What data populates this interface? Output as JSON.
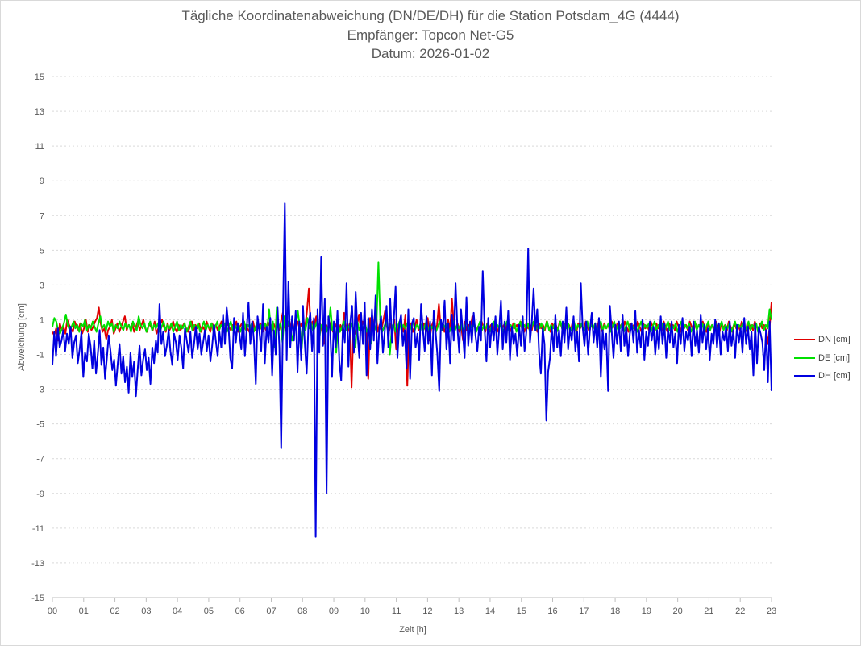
{
  "chart_data": {
    "type": "line",
    "title": "Tägliche Koordinatenabweichung (DN/DE/DH) für die Station Potsdam_4G (4444)",
    "subtitle": "Empfänger: Topcon Net-G5",
    "date_line": "Datum: 2026-01-02",
    "xlabel": "Zeit [h]",
    "ylabel": "Abweichung [cm]",
    "xlim": [
      0,
      23
    ],
    "ylim": [
      -15,
      15
    ],
    "x_ticks": [
      "00",
      "01",
      "02",
      "03",
      "04",
      "05",
      "06",
      "07",
      "08",
      "09",
      "10",
      "11",
      "12",
      "13",
      "14",
      "15",
      "16",
      "17",
      "18",
      "19",
      "20",
      "21",
      "22",
      "23"
    ],
    "y_ticks": [
      "15",
      "13",
      "11",
      "9",
      "7",
      "5",
      "3",
      "1",
      "-1",
      "-3",
      "-5",
      "-7",
      "-9",
      "-11",
      "-13",
      "-15"
    ],
    "y_tick_values": [
      15,
      13,
      11,
      9,
      7,
      5,
      3,
      1,
      -1,
      -3,
      -5,
      -7,
      -9,
      -11,
      -13,
      -15
    ],
    "grid": true,
    "legend_position": "right",
    "sample_interval_h": 0.0625,
    "series": [
      {
        "name": "DN [cm]",
        "color": "#e00000",
        "values": [
          0.3,
          0.1,
          0.5,
          -0.2,
          0.8,
          0.4,
          0.6,
          0.2,
          1.0,
          0.7,
          0.5,
          0.3,
          0.9,
          0.6,
          0.4,
          0.8,
          0.2,
          0.5,
          1.0,
          0.3,
          0.7,
          0.4,
          0.6,
          0.9,
          1.1,
          1.7,
          0.8,
          0.3,
          0.5,
          -0.1,
          0.4,
          0.6,
          1.0,
          0.2,
          0.5,
          0.8,
          0.3,
          0.6,
          0.9,
          1.2,
          0.4,
          0.7,
          0.5,
          0.8,
          0.3,
          0.6,
          0.9,
          0.4,
          0.7,
          1.0,
          0.5,
          0.3,
          0.8,
          0.6,
          0.4,
          0.9,
          0.2,
          0.5,
          0.7,
          1.0,
          0.6,
          0.3,
          0.8,
          0.4,
          0.6,
          0.9,
          0.5,
          0.3,
          0.7,
          0.4,
          0.6,
          0.8,
          0.5,
          0.3,
          0.6,
          0.9,
          0.4,
          0.7,
          0.5,
          0.8,
          0.3,
          0.6,
          0.4,
          0.9,
          0.6,
          0.3,
          0.8,
          0.5,
          0.7,
          0.4,
          0.6,
          0.9,
          0.3,
          0.5,
          0.8,
          0.6,
          0.4,
          0.7,
          0.5,
          0.9,
          0.3,
          0.6,
          0.8,
          0.4,
          0.7,
          0.5,
          0.3,
          0.6,
          0.9,
          0.4,
          0.7,
          0.5,
          0.8,
          0.3,
          0.6,
          0.4,
          0.9,
          0.6,
          0.3,
          0.8,
          0.5,
          0.7,
          0.4,
          0.9,
          1.4,
          0.6,
          0.3,
          0.8,
          0.5,
          1.0,
          0.4,
          0.7,
          0.9,
          0.5,
          0.8,
          0.3,
          0.6,
          1.5,
          2.8,
          0.4,
          0.9,
          0.6,
          1.2,
          0.3,
          0.8,
          0.5,
          -0.4,
          0.7,
          0.4,
          0.9,
          0.6,
          0.3,
          0.8,
          0.5,
          0.2,
          0.7,
          0.4,
          1.4,
          0.6,
          0.3,
          0.8,
          -2.9,
          0.5,
          0.2,
          0.7,
          1.3,
          0.4,
          0.9,
          0.6,
          0.3,
          -2.4,
          1.1,
          0.5,
          0.8,
          1.6,
          0.3,
          0.7,
          0.4,
          0.9,
          1.5,
          0.6,
          0.2,
          0.8,
          0.5,
          1.0,
          -0.7,
          0.4,
          0.9,
          0.6,
          0.3,
          1.3,
          -2.8,
          0.5,
          0.8,
          0.3,
          0.6,
          1.0,
          0.4,
          0.7,
          0.5,
          0.8,
          0.3,
          1.1,
          -0.2,
          0.6,
          0.9,
          0.4,
          0.7,
          1.9,
          0.5,
          0.8,
          0.3,
          0.6,
          1.0,
          0.4,
          2.2,
          0.7,
          0.5,
          0.8,
          0.3,
          0.6,
          -0.2,
          0.9,
          0.4,
          0.7,
          0.5,
          1.2,
          0.8,
          0.3,
          0.6,
          0.4,
          0.9,
          0.6,
          0.3,
          0.8,
          0.5,
          0.7,
          0.4,
          0.9,
          0.6,
          0.3,
          0.8,
          0.5,
          0.7,
          0.4,
          0.9,
          0.6,
          0.3,
          0.8,
          0.5,
          0.7,
          0.4,
          0.9,
          0.6,
          0.3,
          0.8,
          0.5,
          0.7,
          0.4,
          0.9,
          0.6,
          0.3,
          0.8,
          0.5,
          0.7,
          0.4,
          0.9,
          0.6,
          0.3,
          0.8,
          0.5,
          0.7,
          0.4,
          0.9,
          0.6,
          0.3,
          0.8,
          0.5,
          0.7,
          0.4,
          0.9,
          0.6,
          0.3,
          0.8,
          0.5,
          0.7,
          0.4,
          0.9,
          0.6,
          0.3,
          0.8,
          0.5,
          0.7,
          0.4,
          0.9,
          0.6,
          0.3,
          0.8,
          0.5,
          0.7,
          0.4,
          0.9,
          0.6,
          0.3,
          0.8,
          0.5,
          0.7,
          0.4,
          0.9,
          0.6,
          0.3,
          0.8,
          0.5,
          0.7,
          0.4,
          0.9,
          0.6,
          0.3,
          0.8,
          0.5,
          0.7,
          0.4,
          0.9,
          0.6,
          0.3,
          0.8,
          0.5,
          0.7,
          0.4,
          0.9,
          0.6,
          0.3,
          0.8,
          0.5,
          0.7,
          0.4,
          0.9,
          0.6,
          0.3,
          0.8,
          0.5,
          0.7,
          0.4,
          0.9,
          0.6,
          0.3,
          0.8,
          0.5,
          0.7,
          0.4,
          0.9,
          0.6,
          0.3,
          0.8,
          0.5,
          0.7,
          0.4,
          0.9,
          0.6,
          0.3,
          0.8,
          0.5,
          0.7,
          0.4,
          0.9,
          0.6,
          0.3,
          0.8,
          0.5,
          0.7,
          0.4,
          0.9,
          0.6,
          0.3,
          0.8,
          0.5,
          0.7,
          0.4,
          0.9,
          0.6,
          0.3,
          0.8,
          0.5,
          0.7,
          0.4,
          -0.4,
          0.6,
          2.0
        ]
      },
      {
        "name": "DE [cm]",
        "color": "#00e000",
        "values": [
          0.6,
          1.1,
          0.9,
          0.4,
          0.2,
          0.5,
          0.8,
          1.3,
          0.7,
          0.4,
          0.6,
          0.9,
          0.5,
          0.7,
          0.3,
          0.8,
          0.6,
          1.0,
          0.4,
          0.7,
          0.5,
          0.9,
          0.6,
          0.3,
          0.8,
          1.2,
          0.5,
          0.7,
          0.4,
          0.9,
          0.6,
          0.8,
          0.3,
          0.7,
          0.5,
          0.9,
          0.6,
          0.4,
          0.8,
          0.5,
          0.7,
          0.3,
          0.9,
          0.6,
          0.4,
          1.2,
          0.7,
          0.5,
          0.8,
          0.3,
          0.6,
          0.9,
          0.4,
          0.7,
          0.5,
          0.8,
          0.3,
          0.6,
          0.9,
          0.4,
          0.7,
          0.5,
          0.8,
          0.3,
          0.6,
          0.9,
          0.4,
          0.7,
          0.5,
          0.8,
          0.3,
          0.6,
          0.9,
          0.4,
          0.7,
          0.5,
          0.8,
          0.3,
          0.6,
          0.9,
          0.4,
          0.7,
          0.5,
          0.8,
          0.3,
          0.6,
          0.9,
          0.4,
          0.7,
          0.5,
          0.8,
          0.3,
          0.6,
          0.9,
          0.4,
          0.7,
          0.5,
          0.8,
          0.3,
          0.6,
          0.9,
          0.4,
          0.7,
          0.5,
          0.8,
          0.3,
          0.6,
          0.9,
          0.4,
          0.7,
          0.5,
          0.8,
          0.3,
          1.6,
          0.4,
          0.9,
          -0.6,
          1.7,
          0.5,
          0.8,
          -0.3,
          1.2,
          0.6,
          0.9,
          0.4,
          -0.2,
          0.5,
          0.8,
          1.5,
          0.6,
          -0.7,
          0.9,
          0.4,
          1.1,
          0.5,
          0.8,
          0.3,
          0.6,
          0.9,
          -0.4,
          0.7,
          0.5,
          0.8,
          0.3,
          0.6,
          1.7,
          0.4,
          0.7,
          -0.9,
          0.8,
          0.3,
          0.6,
          0.9,
          0.4,
          0.7,
          0.5,
          0.8,
          0.3,
          -0.6,
          0.9,
          0.4,
          0.7,
          0.5,
          0.8,
          0.3,
          0.6,
          -0.4,
          0.9,
          0.4,
          0.7,
          4.3,
          0.8,
          0.3,
          0.6,
          0.9,
          0.4,
          -1.0,
          0.5,
          0.8,
          0.3,
          0.6,
          0.9,
          0.4,
          0.7,
          0.5,
          0.8,
          0.3,
          0.6,
          0.9,
          0.4,
          0.7,
          0.5,
          0.8,
          0.3,
          0.6,
          0.9,
          0.4,
          0.7,
          0.5,
          0.8,
          0.3,
          0.6,
          0.9,
          0.4,
          0.7,
          0.5,
          0.8,
          0.3,
          0.6,
          0.9,
          0.4,
          0.7,
          0.5,
          0.8,
          0.3,
          0.6,
          0.9,
          0.4,
          0.7,
          0.5,
          0.8,
          0.3,
          0.6,
          0.9,
          0.4,
          0.7,
          0.5,
          0.8,
          0.3,
          0.6,
          0.9,
          0.4,
          0.7,
          0.5,
          0.8,
          0.3,
          0.6,
          0.9,
          0.4,
          0.7,
          0.5,
          0.8,
          0.3,
          0.6,
          0.9,
          0.4,
          0.7,
          0.5,
          0.8,
          0.3,
          0.6,
          0.9,
          0.4,
          0.7,
          0.5,
          0.8,
          0.3,
          0.6,
          0.9,
          0.4,
          0.7,
          0.5,
          0.8,
          0.3,
          0.6,
          0.9,
          0.4,
          0.7,
          0.5,
          0.8,
          0.3,
          0.6,
          0.9,
          0.4,
          0.7,
          0.5,
          0.8,
          0.3,
          0.6,
          0.9,
          0.4,
          0.7,
          0.5,
          0.8,
          0.3,
          0.6,
          0.9,
          0.4,
          0.7,
          0.5,
          0.8,
          0.3,
          0.6,
          0.9,
          0.4,
          0.7,
          0.5,
          0.8,
          0.3,
          0.6,
          0.9,
          0.4,
          0.7,
          0.5,
          0.8,
          0.3,
          0.6,
          0.9,
          0.4,
          0.7,
          0.5,
          0.8,
          0.3,
          0.6,
          0.9,
          0.4,
          0.7,
          0.5,
          0.8,
          0.3,
          0.6,
          0.9,
          0.4,
          0.7,
          0.5,
          0.8,
          0.3,
          0.6,
          0.9,
          0.4,
          0.7,
          0.5,
          0.8,
          0.3,
          0.6,
          0.9,
          0.4,
          0.7,
          0.5,
          0.8,
          0.3,
          0.6,
          0.9,
          0.4,
          0.7,
          0.5,
          0.8,
          0.3,
          0.6,
          0.9,
          0.4,
          0.7,
          0.5,
          0.8,
          0.3,
          0.6,
          0.9,
          0.4,
          0.7,
          0.5,
          0.8,
          0.3,
          0.6,
          0.9,
          0.4,
          0.7,
          0.5,
          0.8,
          0.3,
          0.6,
          0.9,
          0.4,
          0.7,
          0.5,
          1.6,
          1.0
        ]
      },
      {
        "name": "DH [cm]",
        "color": "#0000e0",
        "values": [
          -1.6,
          0.3,
          -1.1,
          0.5,
          -0.6,
          -0.2,
          0.4,
          -0.8,
          0.2,
          -0.4,
          0.6,
          -1.2,
          -0.3,
          0.1,
          -1.5,
          -0.7,
          0.3,
          -2.3,
          -0.9,
          -1.4,
          0.2,
          -0.5,
          -1.8,
          -0.2,
          -2.1,
          -1.0,
          0.4,
          -1.6,
          -0.6,
          -2.4,
          -1.2,
          0.1,
          -0.8,
          -1.9,
          -1.3,
          -2.8,
          -1.5,
          -0.4,
          -2.1,
          -1.1,
          -2.6,
          -1.7,
          -3.2,
          -0.9,
          -2.3,
          -1.4,
          -3.4,
          -1.8,
          -0.5,
          -2.2,
          -1.3,
          -0.7,
          -1.9,
          -1.2,
          -2.7,
          -0.6,
          -1.5,
          -0.2,
          -0.9,
          1.9,
          -0.4,
          0.3,
          -1.1,
          -0.5,
          0.4,
          -0.8,
          -1.6,
          0.2,
          -0.3,
          -1.3,
          0.1,
          -0.6,
          -1.8,
          0.5,
          -0.2,
          -0.9,
          0.3,
          -1.2,
          -0.4,
          0.6,
          -0.7,
          0.2,
          -1.0,
          -0.3,
          0.4,
          -0.8,
          0.1,
          -1.4,
          -0.5,
          0.7,
          -0.2,
          -1.1,
          0.3,
          -0.6,
          1.3,
          -0.4,
          1.7,
          0.6,
          -1.2,
          -1.8,
          1.1,
          -0.3,
          0.8,
          0.2,
          -0.7,
          1.4,
          -1.1,
          0.5,
          2.0,
          -0.4,
          0.9,
          -0.2,
          -2.7,
          1.2,
          0.3,
          -0.8,
          1.9,
          -1.5,
          0.6,
          -0.3,
          1.1,
          -2.2,
          0.4,
          -1.0,
          1.7,
          -0.6,
          -6.4,
          1.5,
          7.7,
          -1.3,
          3.2,
          -0.6,
          1.2,
          -0.2,
          1.5,
          -2.0,
          0.9,
          -1.3,
          1.8,
          -0.4,
          -2.1,
          0.7,
          1.4,
          -0.8,
          1.1,
          -11.5,
          1.6,
          -0.9,
          4.6,
          -0.5,
          2.2,
          -9.0,
          1.2,
          0.4,
          -2.3,
          0.9,
          -0.6,
          1.5,
          -1.4,
          -2.5,
          0.7,
          -0.3,
          3.1,
          -1.7,
          0.8,
          1.8,
          -0.9,
          2.6,
          0.3,
          -1.2,
          1.4,
          -0.4,
          2.0,
          -2.2,
          1.1,
          -0.7,
          1.6,
          -0.2,
          2.4,
          -1.5,
          0.5,
          1.2,
          -0.9,
          0.3,
          1.8,
          -0.6,
          2.2,
          -0.3,
          1.0,
          2.9,
          -1.2,
          0.7,
          1.3,
          -0.5,
          0.4,
          -1.8,
          1.6,
          -2.4,
          0.8,
          1.1,
          -0.6,
          0.2,
          -1.3,
          1.9,
          0.5,
          -0.8,
          1.2,
          -0.4,
          0.9,
          -2.2,
          1.5,
          0.3,
          -1.0,
          -3.1,
          1.0,
          0.4,
          2.1,
          -0.7,
          0.8,
          -1.5,
          1.3,
          -0.2,
          3.1,
          0.6,
          -0.9,
          1.6,
          0.3,
          -1.2,
          2.3,
          -0.5,
          0.9,
          -0.3,
          1.4,
          0.1,
          -0.8,
          0.6,
          -0.2,
          3.8,
          0.5,
          -1.4,
          1.1,
          -0.6,
          0.8,
          -0.2,
          1.2,
          -1.0,
          0.4,
          2.1,
          -0.7,
          0.9,
          -0.3,
          1.5,
          -1.3,
          0.6,
          -0.4,
          0.2,
          -1.1,
          0.7,
          -0.5,
          1.2,
          -0.8,
          0.3,
          5.1,
          -0.3,
          0.9,
          2.8,
          0.4,
          1.6,
          -0.9,
          -2.1,
          0.5,
          -0.4,
          -4.8,
          -2.0,
          -1.2,
          0.6,
          -0.8,
          1.3,
          -0.6,
          0.4,
          -1.1,
          0.9,
          -0.3,
          1.7,
          -0.7,
          0.5,
          -0.2,
          1.2,
          -0.8,
          0.3,
          -1.4,
          3.1,
          0.6,
          -0.5,
          0.9,
          -1.0,
          0.4,
          1.4,
          -0.3,
          0.8,
          -0.6,
          1.1,
          -2.3,
          0.4,
          -0.7,
          0.2,
          -3.1,
          1.8,
          0.3,
          -1.2,
          0.7,
          -0.4,
          0.9,
          -0.8,
          1.3,
          -0.5,
          0.6,
          -1.1,
          0.2,
          0.8,
          -0.3,
          1.5,
          -0.9,
          0.4,
          -0.6,
          1.0,
          -1.3,
          0.3,
          -0.5,
          0.9,
          -0.2,
          0.6,
          -1.0,
          0.4,
          -0.7,
          1.2,
          -0.4,
          0.8,
          -1.2,
          0.5,
          -0.3,
          0.9,
          -0.6,
          0.2,
          -1.5,
          0.7,
          -0.4,
          1.1,
          -0.8,
          0.3,
          -0.2,
          0.6,
          -1.1,
          0.9,
          -0.5,
          0.4,
          -0.9,
          1.3,
          -0.3,
          0.7,
          -0.7,
          0.5,
          -1.3,
          0.2,
          -0.4,
          1.0,
          -0.6,
          0.8,
          -1.0,
          0.3,
          -0.2,
          0.6,
          -0.8,
          0.9,
          -0.5,
          0.4,
          -1.2,
          0.7,
          -0.3,
          0.5,
          -0.9,
          1.1,
          -0.4,
          0.6,
          -0.7,
          0.3,
          -2.2,
          0.8,
          -1.5,
          0.6,
          0.2,
          -0.3,
          -1.9,
          0.4,
          -2.6,
          0.9,
          -3.1
        ]
      }
    ]
  }
}
